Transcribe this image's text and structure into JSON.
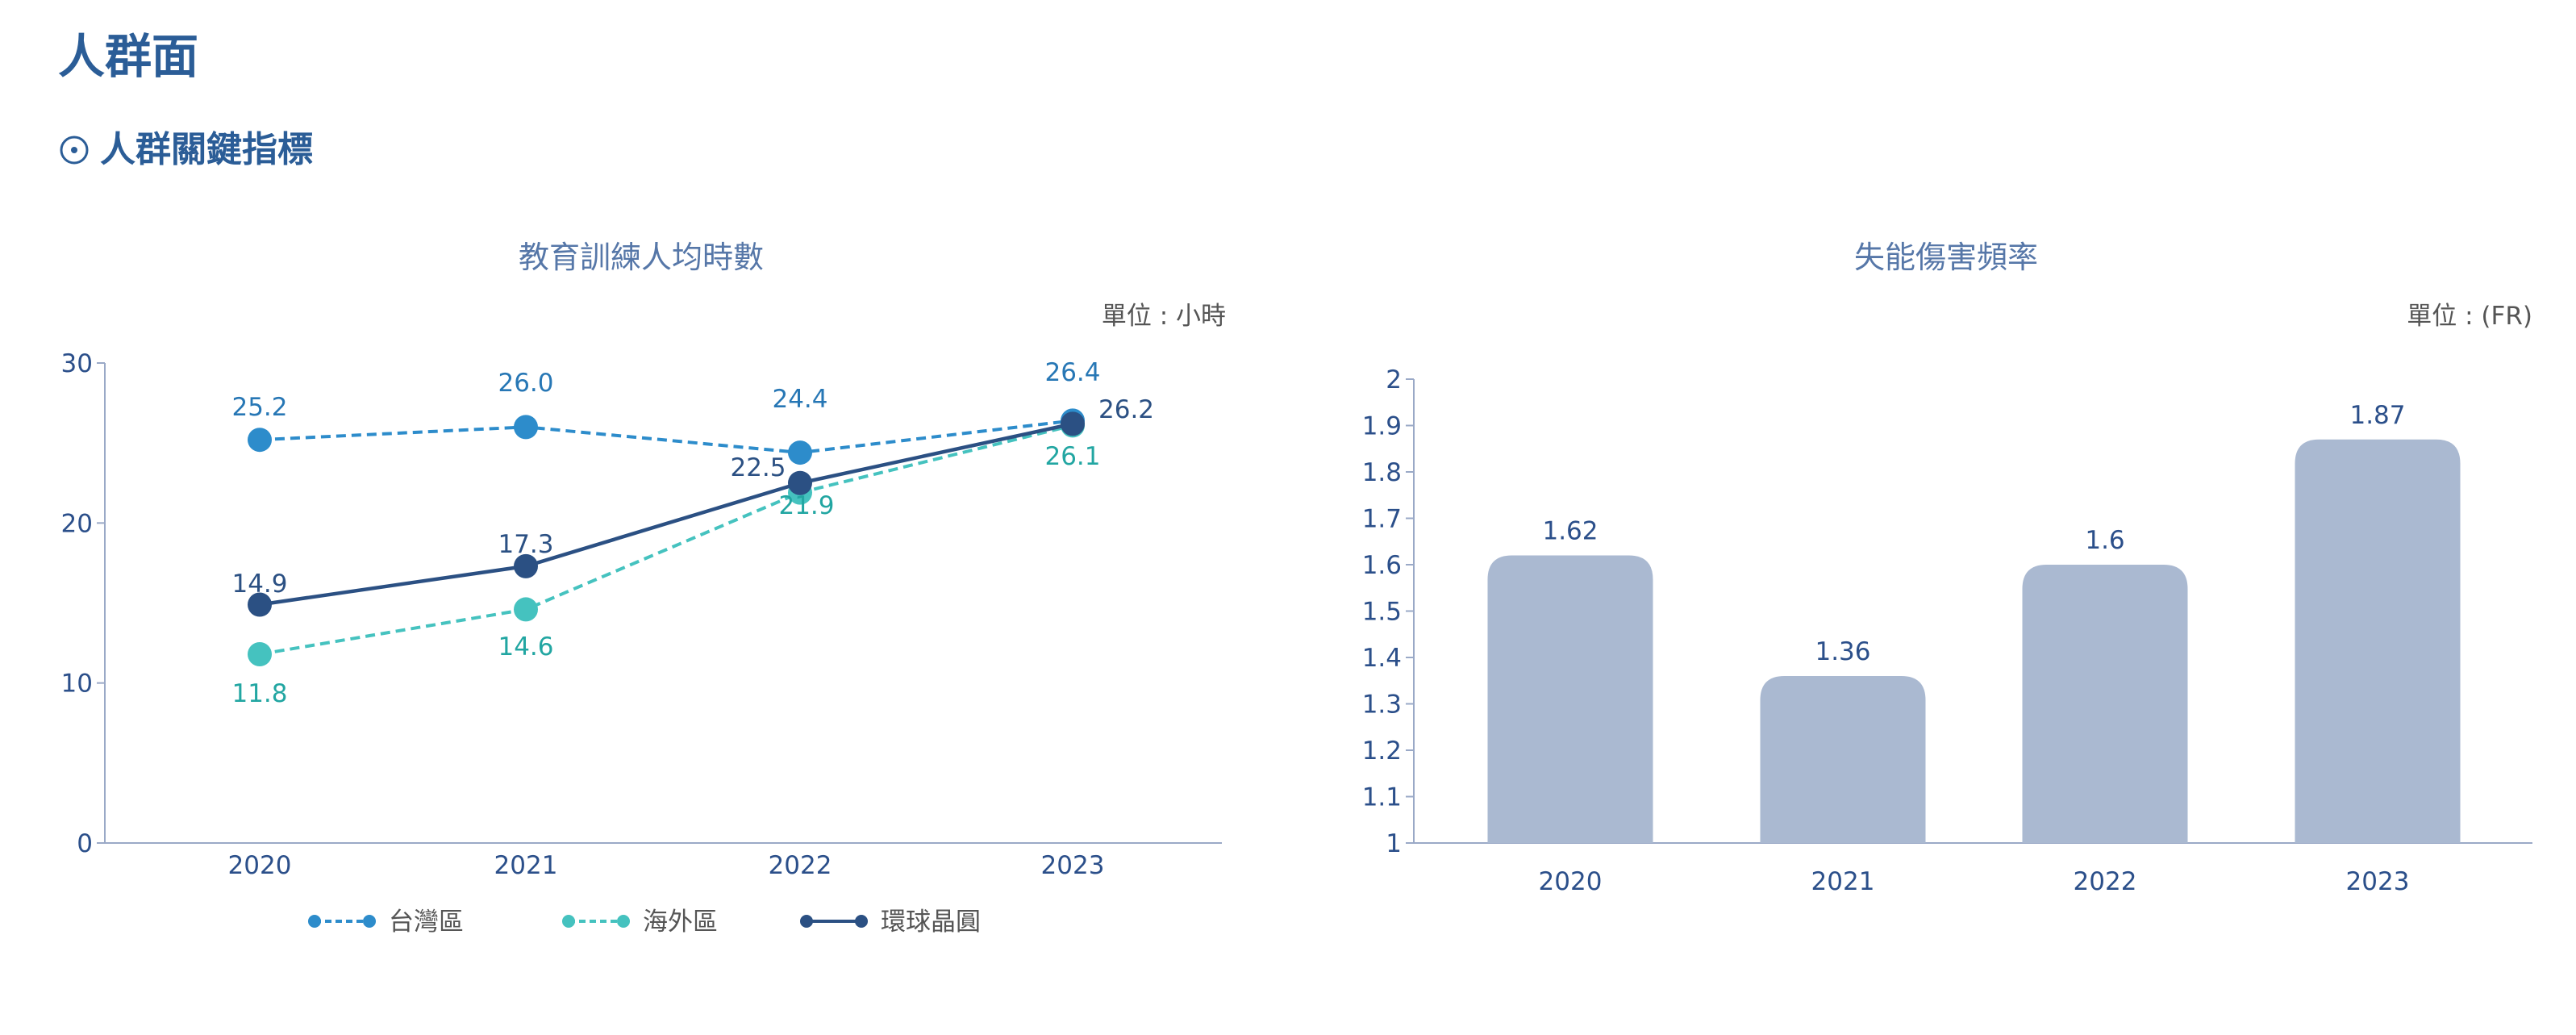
{
  "page": {
    "title": "人群面",
    "section_title": "人群關鍵指標"
  },
  "colors": {
    "heading": "#2b5d97",
    "axis_text": "#2b4f8a",
    "axis_line": "#9aa9c7",
    "taiwan": "#2d8ccb",
    "overseas": "#45c2bf",
    "overseas_label": "#22a6a2",
    "global": "#2b5083",
    "bar": "#aab9d1"
  },
  "chart_data": [
    {
      "type": "line",
      "title": "教育訓練人均時數",
      "unit_label": "單位 : 小時",
      "x": [
        "2020",
        "2021",
        "2022",
        "2023"
      ],
      "yticks": [
        "0",
        "10",
        "20",
        "30"
      ],
      "ylim": [
        0,
        30
      ],
      "legend_position": "bottom",
      "grid": false,
      "series": [
        {
          "name": "台灣區",
          "values": [
            25.2,
            26.0,
            24.4,
            26.4
          ],
          "labels": [
            "25.2",
            "26.0",
            "24.4",
            "26.4"
          ],
          "style": "dashed",
          "color": "#2d8ccb"
        },
        {
          "name": "海外區",
          "values": [
            11.8,
            14.6,
            21.9,
            26.1
          ],
          "labels": [
            "11.8",
            "14.6",
            "21.9",
            "26.1"
          ],
          "style": "dashed",
          "color": "#45c2bf"
        },
        {
          "name": "環球晶圓",
          "values": [
            14.9,
            17.3,
            22.5,
            26.2
          ],
          "labels": [
            "14.9",
            "17.3",
            "22.5",
            "26.2"
          ],
          "style": "solid",
          "color": "#2b5083"
        }
      ]
    },
    {
      "type": "bar",
      "title": "失能傷害頻率",
      "unit_label": "單位 : (FR)",
      "categories": [
        "2020",
        "2021",
        "2022",
        "2023"
      ],
      "values": [
        1.62,
        1.36,
        1.6,
        1.87
      ],
      "labels": [
        "1.62",
        "1.36",
        "1.6",
        "1.87"
      ],
      "yticks": [
        "1",
        "1.1",
        "1.2",
        "1.3",
        "1.4",
        "1.5",
        "1.6",
        "1.7",
        "1.8",
        "1.9",
        "2"
      ],
      "ylim": [
        1,
        2
      ],
      "grid": false
    }
  ]
}
